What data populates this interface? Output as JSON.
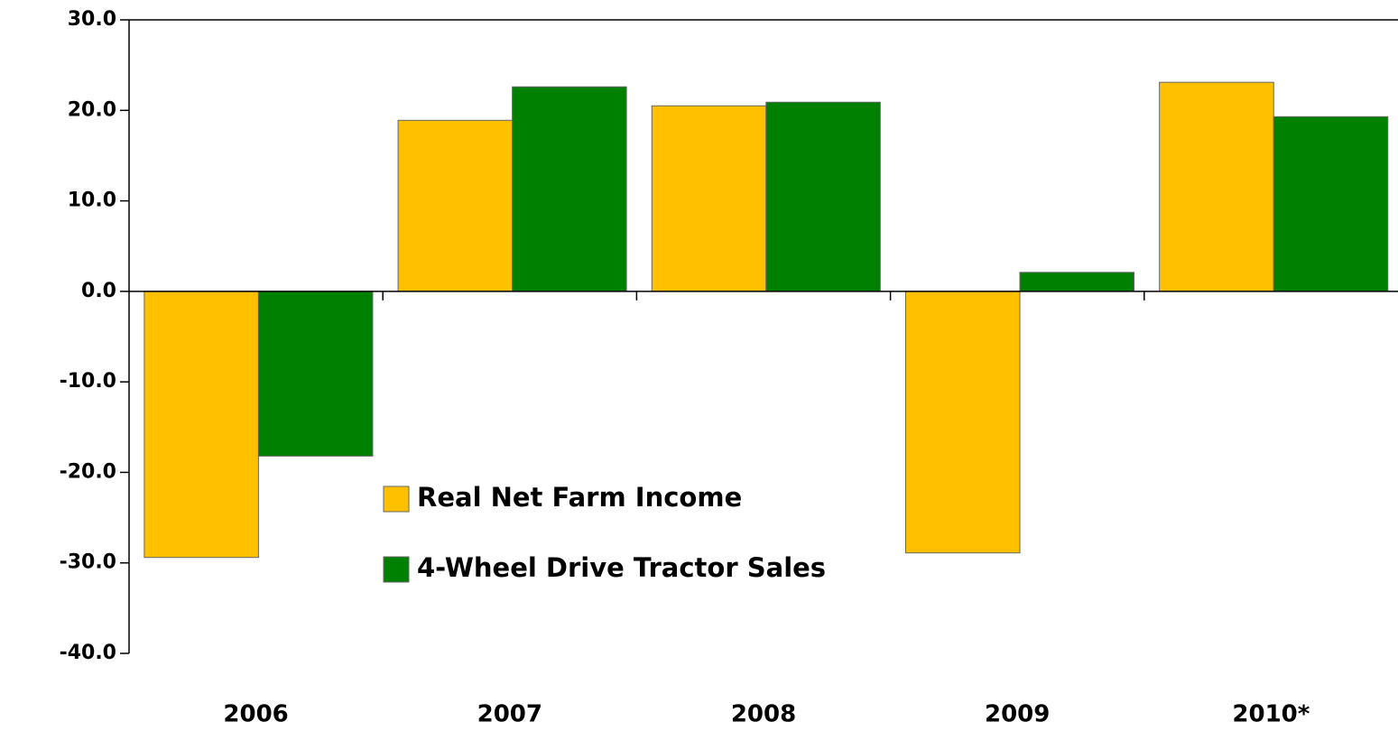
{
  "chart_data": {
    "type": "bar",
    "categories": [
      "2006",
      "2007",
      "2008",
      "2009",
      "2010*"
    ],
    "series": [
      {
        "name": "Real Net Farm Income",
        "color": "#ffc000",
        "values": [
          -29.4,
          18.9,
          20.5,
          -28.9,
          23.1
        ]
      },
      {
        "name": "4-Wheel Drive Tractor Sales",
        "color": "#008000",
        "values": [
          -18.2,
          22.6,
          20.9,
          2.1,
          19.3
        ]
      }
    ],
    "ylim": [
      -40,
      30
    ],
    "yticks": [
      {
        "value": -40,
        "label": "-40.0"
      },
      {
        "value": -30,
        "label": "-30.0"
      },
      {
        "value": -20,
        "label": "-20.0"
      },
      {
        "value": -10,
        "label": "-10.0"
      },
      {
        "value": 0,
        "label": "0.0"
      },
      {
        "value": 10,
        "label": "10.0"
      },
      {
        "value": 20,
        "label": "20.0"
      },
      {
        "value": 30,
        "label": "30.0"
      }
    ],
    "grid": false
  }
}
